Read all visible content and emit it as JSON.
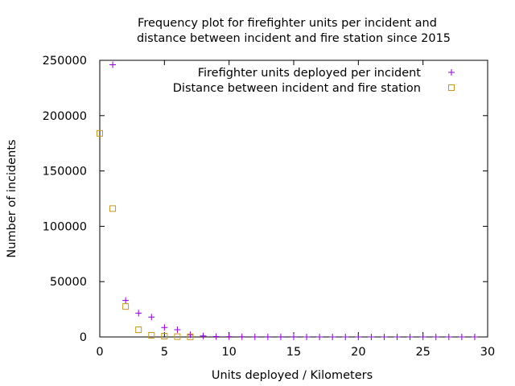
{
  "chart_data": {
    "type": "scatter",
    "title_line1": "Frequency plot for firefighter units per incident and",
    "title_line2": "distance between incident and fire station since 2015",
    "xlabel": "Units deployed / Kilometers",
    "ylabel": "Number of incidents",
    "xlim": [
      0,
      30
    ],
    "ylim": [
      0,
      250000
    ],
    "x_ticks": [
      0,
      5,
      10,
      15,
      20,
      25,
      30
    ],
    "y_ticks": [
      0,
      50000,
      100000,
      150000,
      200000,
      250000
    ],
    "x_tick_labels": [
      "0",
      "5",
      "10",
      "15",
      "20",
      "25",
      "30"
    ],
    "y_tick_labels": [
      "0",
      "50000",
      "100000",
      "150000",
      "200000",
      "250000"
    ],
    "grid": false,
    "legend_position": "top-right",
    "series": [
      {
        "name": "Firefighter units deployed per incident",
        "marker": "plus",
        "color": "#9400d3",
        "points": [
          [
            1,
            246000
          ],
          [
            2,
            33000
          ],
          [
            3,
            21500
          ],
          [
            4,
            18000
          ],
          [
            5,
            8500
          ],
          [
            6,
            6500
          ],
          [
            7,
            2000
          ],
          [
            8,
            900
          ],
          [
            9,
            400
          ],
          [
            10,
            250
          ],
          [
            11,
            150
          ],
          [
            12,
            100
          ],
          [
            13,
            80
          ],
          [
            14,
            60
          ],
          [
            15,
            50
          ],
          [
            16,
            40
          ],
          [
            17,
            30
          ],
          [
            18,
            25
          ],
          [
            19,
            20
          ],
          [
            20,
            15
          ],
          [
            21,
            12
          ],
          [
            22,
            10
          ],
          [
            23,
            8
          ],
          [
            24,
            6
          ],
          [
            25,
            5
          ],
          [
            26,
            4
          ],
          [
            27,
            3
          ],
          [
            28,
            2
          ],
          [
            29,
            1
          ]
        ]
      },
      {
        "name": "Distance between incident and fire station",
        "marker": "square",
        "color": "#c8961e",
        "points": [
          [
            0,
            184000
          ],
          [
            1,
            116000
          ],
          [
            2,
            27500
          ],
          [
            3,
            6500
          ],
          [
            4,
            1500
          ],
          [
            5,
            700
          ],
          [
            6,
            300
          ],
          [
            7,
            150
          ]
        ]
      }
    ]
  }
}
